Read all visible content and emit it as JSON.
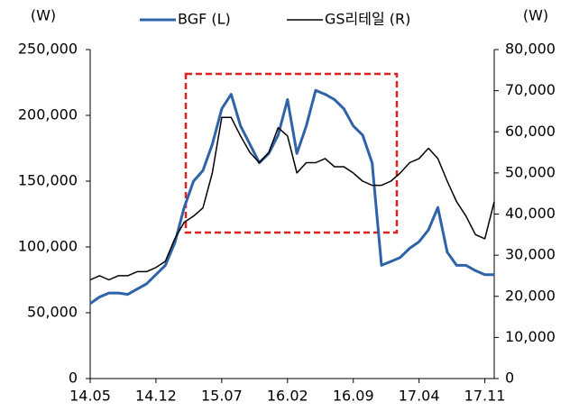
{
  "chart_data": {
    "type": "line",
    "y_unit": "(W)",
    "y2_unit": "(W)",
    "categories": [
      "14.05",
      null,
      null,
      null,
      null,
      null,
      null,
      "14.12",
      null,
      null,
      null,
      null,
      null,
      null,
      "15.07",
      null,
      null,
      null,
      null,
      null,
      null,
      "16.02",
      null,
      null,
      null,
      null,
      null,
      null,
      "16.09",
      null,
      null,
      null,
      null,
      null,
      null,
      "17.04",
      null,
      null,
      null,
      null,
      null,
      null,
      "17.11",
      null
    ],
    "series": [
      {
        "name": "BGF (L)",
        "color": "#2e63a8",
        "axis": "y",
        "values": [
          57000,
          62000,
          65000,
          65000,
          64000,
          68000,
          72000,
          79000,
          86000,
          103000,
          130000,
          150000,
          158000,
          178000,
          205000,
          216000,
          192000,
          178000,
          164000,
          171000,
          185000,
          212000,
          171000,
          192000,
          219000,
          216000,
          212000,
          205000,
          192000,
          185000,
          164000,
          86000,
          89000,
          92000,
          99000,
          104000,
          113000,
          130000,
          96000,
          86000,
          86000,
          82000,
          79000,
          79000
        ]
      },
      {
        "name": "GS리테일 (R)",
        "color": "#000000",
        "axis": "y2",
        "values": [
          24000,
          25000,
          24000,
          25000,
          25000,
          26000,
          26000,
          27000,
          28500,
          34000,
          38000,
          39500,
          41500,
          50000,
          63500,
          63500,
          59000,
          55000,
          52500,
          55000,
          61000,
          59000,
          50000,
          52500,
          52500,
          53500,
          51500,
          51500,
          50000,
          48000,
          47000,
          47000,
          48000,
          50000,
          52500,
          53500,
          56000,
          53500,
          48000,
          43000,
          39500,
          35000,
          34000,
          43000
        ]
      }
    ],
    "ylim": [
      0,
      250000
    ],
    "yticks": [
      0,
      {
        "value": 50000,
        "label": "50,000"
      },
      {
        "value": 100000,
        "label": "100,000"
      },
      {
        "value": 150000,
        "label": "150,000"
      },
      {
        "value": 200000,
        "label": "200,000"
      },
      {
        "value": 250000,
        "label": "250,000"
      }
    ],
    "y2lim": [
      0,
      80000
    ],
    "y2ticks": [
      0,
      {
        "value": 10000,
        "label": "10,000"
      },
      {
        "value": 20000,
        "label": "20,000"
      },
      {
        "value": 30000,
        "label": "30,000"
      },
      {
        "value": 40000,
        "label": "40,000"
      },
      {
        "value": 50000,
        "label": "50,000"
      },
      {
        "value": 60000,
        "label": "60,000"
      },
      {
        "value": 70000,
        "label": "70,000"
      },
      {
        "value": 80000,
        "label": "80,000"
      }
    ],
    "legend": "top"
  }
}
